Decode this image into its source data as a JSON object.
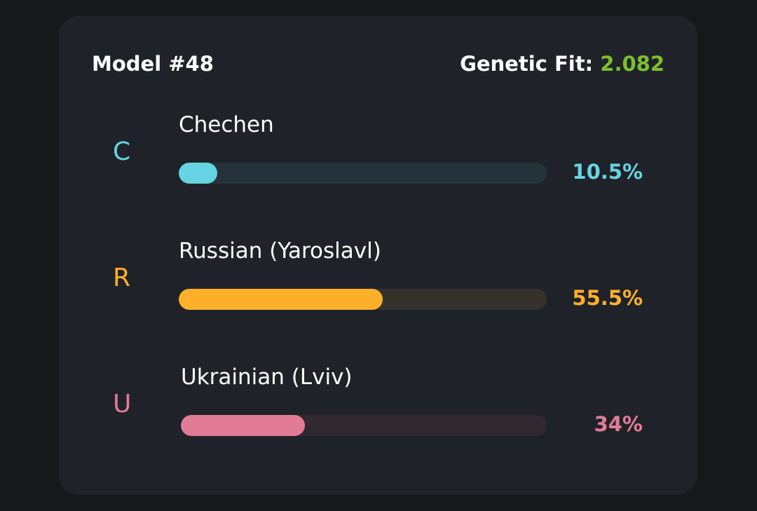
{
  "header": {
    "title": "Model #48",
    "fit_label": "Genetic Fit:",
    "fit_value": "2.082",
    "fit_color": "#7cbf2f"
  },
  "populations": [
    {
      "letter": "C",
      "name": "Chechen",
      "percent_label": "10.5%",
      "percent": 10.5,
      "color": "#66d4e2",
      "track_color": "#253239"
    },
    {
      "letter": "R",
      "name": "Russian (Yaroslavl)",
      "percent_label": "55.5%",
      "percent": 55.5,
      "color": "#ffb02a",
      "track_color": "#35322c"
    },
    {
      "letter": "U",
      "name": "Ukrainian (Lviv)",
      "percent_label": "34%",
      "percent": 34,
      "color": "#e27c96",
      "track_color": "#30292f"
    }
  ]
}
